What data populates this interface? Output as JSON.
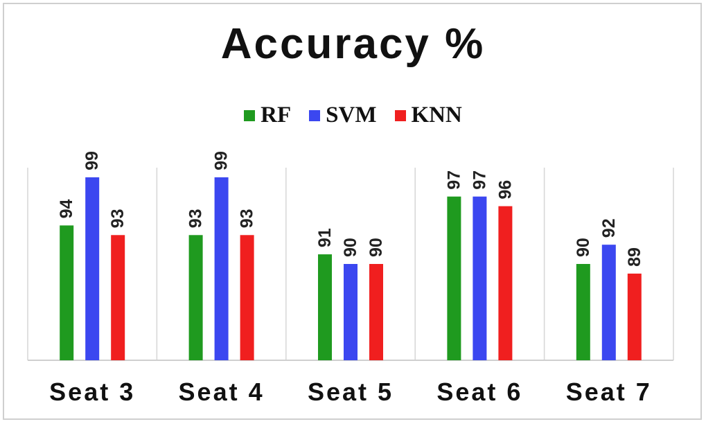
{
  "chart_data": {
    "type": "bar",
    "title": "Accuracy  %",
    "categories": [
      "Seat 3",
      "Seat 4",
      "Seat 5",
      "Seat 6",
      "Seat 7"
    ],
    "series": [
      {
        "name": "RF",
        "color": "#1f9a1f",
        "values": [
          94,
          93,
          91,
          97,
          90
        ]
      },
      {
        "name": "SVM",
        "color": "#3b47f0",
        "values": [
          99,
          99,
          90,
          97,
          92
        ]
      },
      {
        "name": "KNN",
        "color": "#f01f1f",
        "values": [
          93,
          93,
          90,
          96,
          89
        ]
      }
    ],
    "ylim": [
      80,
      100
    ],
    "legend_position": "top-center",
    "data_labels": true,
    "data_label_orientation": "vertical"
  }
}
